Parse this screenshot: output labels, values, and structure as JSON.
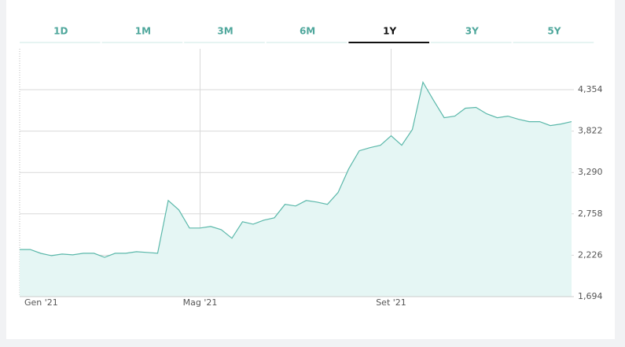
{
  "tabs": [
    "1D",
    "1M",
    "3M",
    "6M",
    "1Y",
    "3Y",
    "5Y"
  ],
  "active_tab": 4,
  "chart_data": {
    "type": "area",
    "color": "#5bb8aa",
    "fill": "#e5f6f4",
    "grid": true,
    "categories": [
      "Gen '21",
      null,
      null,
      null,
      null,
      null,
      null,
      null,
      null,
      null,
      null,
      null,
      null,
      null,
      null,
      null,
      null,
      "Mag '21",
      null,
      null,
      null,
      null,
      null,
      null,
      null,
      null,
      null,
      null,
      null,
      null,
      null,
      null,
      null,
      null,
      null,
      "Set '21",
      null,
      null,
      null,
      null,
      null,
      null,
      null,
      null,
      null,
      null,
      null,
      null,
      null,
      null,
      null,
      null,
      null
    ],
    "values": [
      2300,
      2300,
      2250,
      2221,
      2241,
      2231,
      2251,
      2251,
      2200,
      2251,
      2251,
      2272,
      2262,
      2251,
      2930,
      2809,
      2576,
      2576,
      2596,
      2555,
      2444,
      2657,
      2626,
      2677,
      2707,
      2880,
      2859,
      2930,
      2910,
      2880,
      3032,
      3336,
      3569,
      3609,
      3640,
      3761,
      3640,
      3842,
      4450,
      4217,
      3994,
      4014,
      4116,
      4126,
      4045,
      3994,
      4014,
      3974,
      3943,
      3943,
      3893,
      3913,
      3943
    ],
    "ylim": [
      1694,
      4880
    ],
    "yticks": [
      {
        "value": 1694,
        "label": "1,694"
      },
      {
        "value": 2226,
        "label": "2,226"
      },
      {
        "value": 2758,
        "label": "2,758"
      },
      {
        "value": 3290,
        "label": "3,290"
      },
      {
        "value": 3822,
        "label": "3,822"
      },
      {
        "value": 4354,
        "label": "4,354"
      }
    ]
  }
}
